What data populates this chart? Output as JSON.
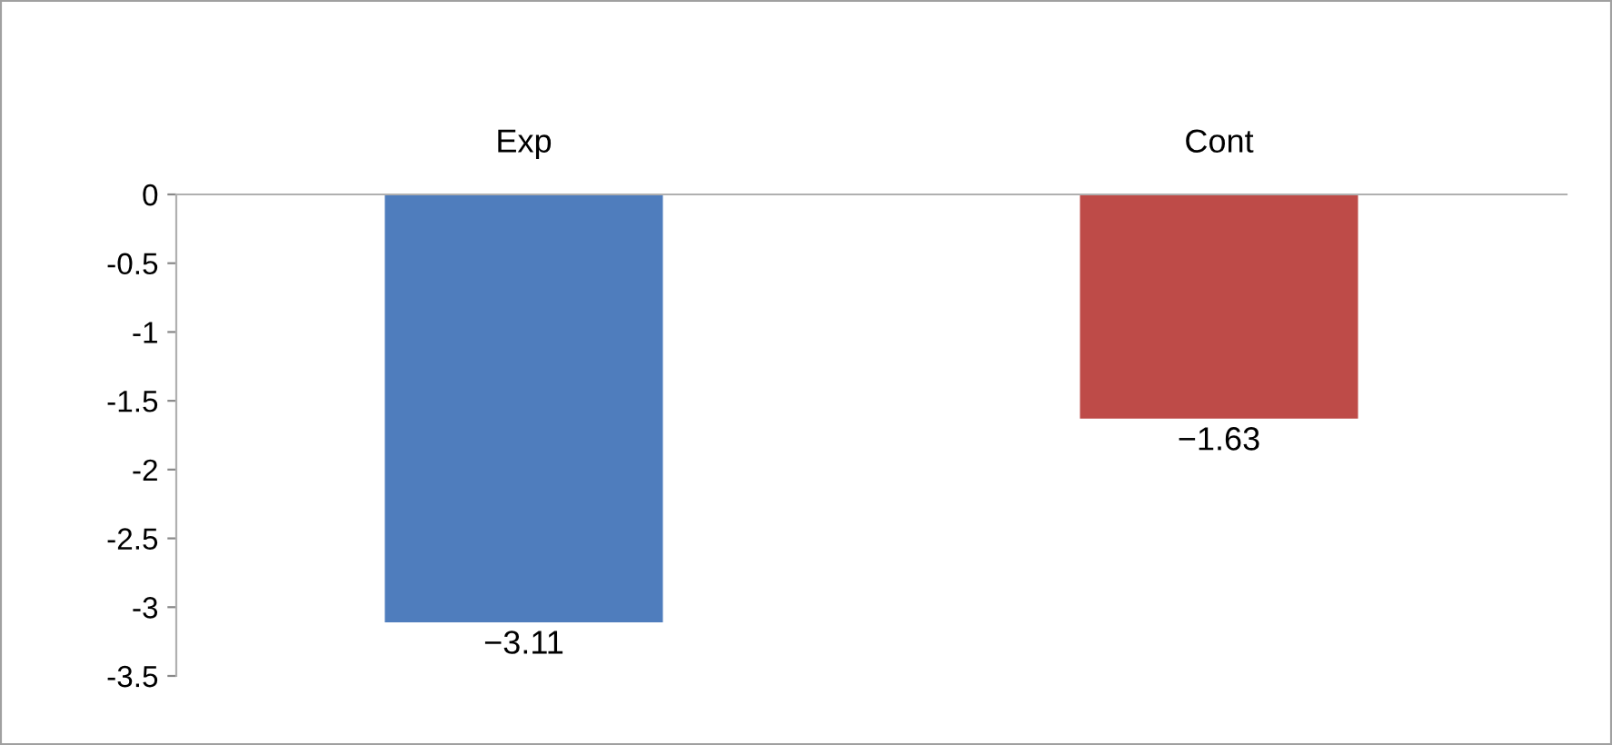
{
  "chart_data": {
    "type": "bar",
    "categories": [
      "Exp",
      "Cont"
    ],
    "values": [
      -3.11,
      -1.63
    ],
    "colors": [
      "#4f7dbd",
      "#be4b48"
    ],
    "ylim": [
      -3.5,
      0
    ],
    "yticks": [
      0,
      -0.5,
      -1,
      -1.5,
      -2,
      -2.5,
      -3,
      -3.5
    ],
    "data_labels": true,
    "grid": false,
    "legend": false
  }
}
